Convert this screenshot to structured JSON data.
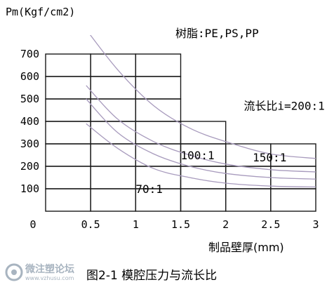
{
  "chart_data": {
    "type": "line",
    "title": "树脂:PE,PS,PP",
    "ylabel": "Pm(Kgf/cm2)",
    "xlabel": "制品壁厚(mm)",
    "caption": "图2-1 模腔压力与流长比",
    "x_ticks": [
      "0",
      "0.5",
      "1",
      "1.5",
      "2",
      "2.5",
      "3"
    ],
    "y_ticks": [
      "100",
      "200",
      "300",
      "400",
      "500",
      "600",
      "700"
    ],
    "xlim": [
      0,
      3
    ],
    "ylim": [
      0,
      800
    ],
    "grid_region": [
      {
        "x": [
          0,
          1.5
        ],
        "y": [
          0,
          700
        ]
      },
      {
        "x": [
          1.5,
          2
        ],
        "y": [
          0,
          400
        ]
      },
      {
        "x": [
          2,
          3
        ],
        "y": [
          0,
          300
        ]
      }
    ],
    "annotations": [
      {
        "text": "流长比i=200:1",
        "x": 2.2,
        "y": 470
      },
      {
        "text": "150:1",
        "x": 2.3,
        "y": 240
      },
      {
        "text": "100:1",
        "x": 1.5,
        "y": 250
      },
      {
        "text": "70:1",
        "x": 1.0,
        "y": 100
      }
    ],
    "series": [
      {
        "label": "200:1",
        "x": [
          0.43,
          0.8,
          1.2,
          1.6,
          2.0,
          2.5,
          3.0
        ],
        "y": [
          820,
          630,
          470,
          370,
          310,
          255,
          235
        ]
      },
      {
        "label": "150:1",
        "x": [
          0.45,
          0.8,
          1.2,
          1.6,
          2.0,
          2.5,
          3.0
        ],
        "y": [
          560,
          410,
          310,
          250,
          210,
          185,
          175
        ]
      },
      {
        "label": "100:1",
        "x": [
          0.45,
          0.8,
          1.2,
          1.6,
          2.0,
          2.5,
          3.0
        ],
        "y": [
          500,
          350,
          255,
          200,
          168,
          150,
          143
        ]
      },
      {
        "label": "70:1",
        "x": [
          0.45,
          0.8,
          1.2,
          1.6,
          2.0,
          2.5,
          3.0
        ],
        "y": [
          390,
          280,
          190,
          150,
          125,
          112,
          108
        ]
      }
    ],
    "line_color": "#a89bbd",
    "grid_color": "#1a1a1a"
  },
  "watermark": {
    "name": "微注塑论坛",
    "url": "www.vzhusu.com",
    "color": "#a8b4c0"
  }
}
